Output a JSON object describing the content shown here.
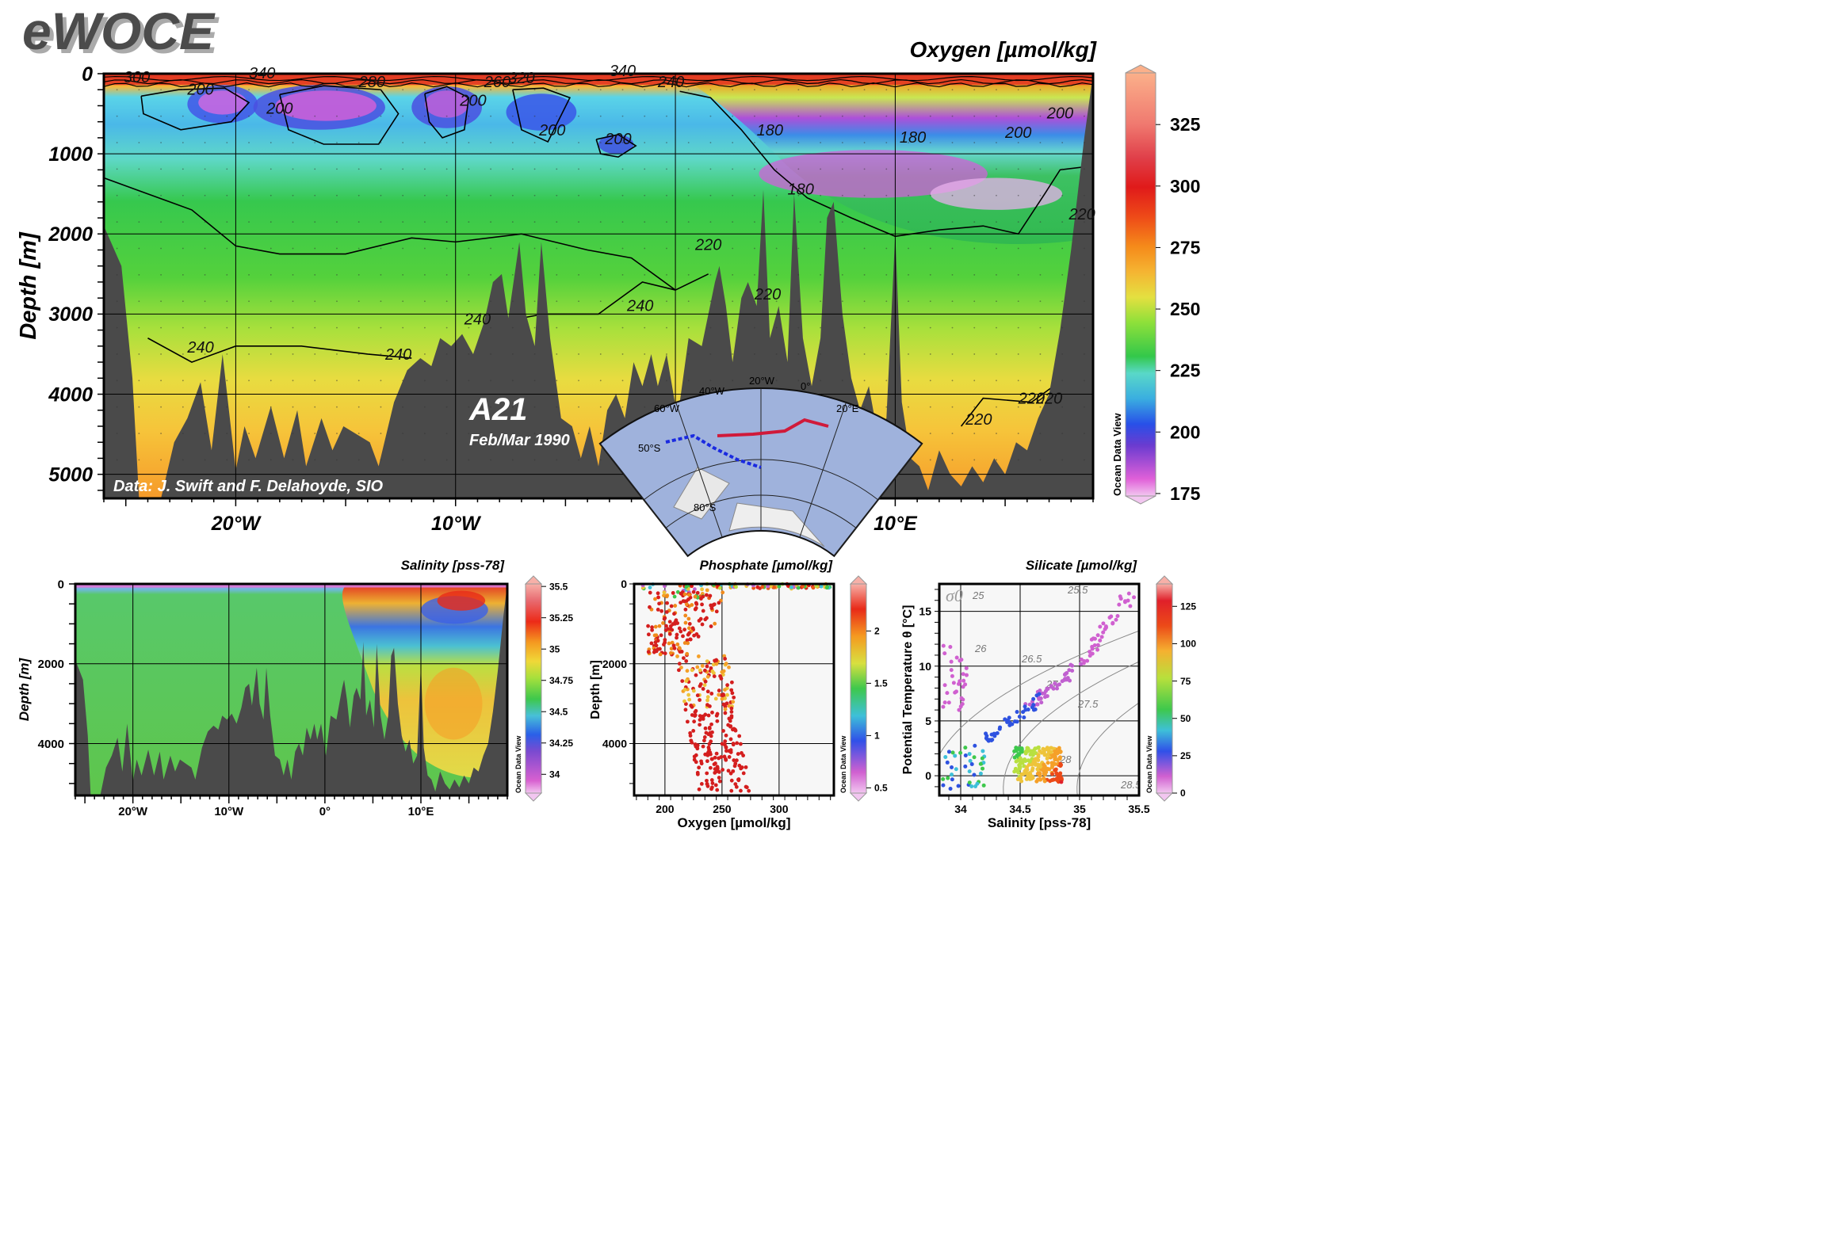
{
  "logo": "eWOCE",
  "chart_data": [
    {
      "type": "heatmap",
      "id": "oxygen-section",
      "title": "Oxygen [µmol/kg]",
      "ylabel": "Depth [m]",
      "xlabel": "",
      "x_ticks": [
        "20°W",
        "10°W",
        "0°",
        "10°E"
      ],
      "x_tick_values": [
        -20,
        -10,
        0,
        10
      ],
      "y_ticks": [
        "0",
        "1000",
        "2000",
        "3000",
        "4000",
        "5000"
      ],
      "y_tick_values": [
        0,
        1000,
        2000,
        3000,
        4000,
        5000
      ],
      "xlim": [
        -26,
        19
      ],
      "ylim": [
        5300,
        0
      ],
      "colorbar_ticks": [
        "175",
        "200",
        "225",
        "250",
        "275",
        "300",
        "325"
      ],
      "colorbar_values": [
        175,
        200,
        225,
        250,
        275,
        300,
        325
      ],
      "colorbar_range": [
        174,
        346
      ],
      "contour_labels": [
        "300",
        "340",
        "280",
        "260",
        "320",
        "340",
        "240",
        "200",
        "200",
        "200",
        "200",
        "200",
        "180",
        "180",
        "180",
        "200",
        "200",
        "220",
        "220",
        "220",
        "240",
        "240",
        "240",
        "240",
        "220",
        "220",
        "220"
      ],
      "contour_values": [
        300,
        340,
        280,
        260,
        320,
        340,
        240,
        200,
        200,
        200,
        200,
        200,
        180,
        180,
        180,
        200,
        200,
        220,
        220,
        220,
        240,
        240,
        240,
        240,
        220,
        220,
        220
      ],
      "contour_label_lon": [
        -24.5,
        -18.8,
        -13.8,
        -8.1,
        -7.0,
        -2.4,
        -0.2,
        -21.6,
        -18.0,
        -9.2,
        -5.6,
        -2.6,
        4.3,
        5.7,
        10.8,
        15.6,
        17.5,
        1.5,
        4.2,
        18.5,
        -21.6,
        -12.6,
        -1.6,
        -9.0,
        16.2,
        13.8,
        17.0
      ],
      "contour_label_depth": [
        110,
        60,
        170,
        170,
        120,
        30,
        170,
        260,
        500,
        400,
        770,
        880,
        770,
        1510,
        860,
        800,
        560,
        2200,
        2820,
        1820,
        3480,
        3570,
        2960,
        3130,
        4120,
        4380,
        4120
      ],
      "annotation_cruise": "A21",
      "annotation_date": "Feb/Mar 1990",
      "source": "Data: J. Swift and F. Delahoyde, SIO",
      "inset_map_labels": [
        "20°W",
        "40°W",
        "60°W",
        "0°",
        "20°E",
        "50°S",
        "80°S"
      ],
      "odv_label": "Ocean Data View"
    },
    {
      "type": "heatmap",
      "id": "salinity-section",
      "title": "Salinity [pss-78]",
      "ylabel": "Depth [m]",
      "xlabel": "",
      "x_ticks": [
        "20°W",
        "10°W",
        "0°",
        "10°E"
      ],
      "x_tick_values": [
        -20,
        -10,
        0,
        10
      ],
      "y_ticks": [
        "0",
        "2000",
        "4000"
      ],
      "y_tick_values": [
        0,
        2000,
        4000
      ],
      "xlim": [
        -26,
        19
      ],
      "ylim": [
        5300,
        0
      ],
      "colorbar_ticks": [
        "34",
        "34.25",
        "34.5",
        "34.75",
        "35",
        "35.25",
        "35.5"
      ],
      "colorbar_values": [
        34,
        34.25,
        34.5,
        34.75,
        35,
        35.25,
        35.5
      ],
      "colorbar_range": [
        33.85,
        35.52
      ],
      "odv_label": "Ocean Data View"
    },
    {
      "type": "scatter",
      "id": "phosphate-profile",
      "title": "Phosphate [µmol/kg]",
      "xlabel": "Oxygen [µmol/kg]",
      "ylabel": "Depth [m]",
      "x_ticks": [
        "200",
        "250",
        "300"
      ],
      "x_tick_values": [
        200,
        250,
        300
      ],
      "y_ticks": [
        "0",
        "2000",
        "4000"
      ],
      "y_tick_values": [
        0,
        2000,
        4000
      ],
      "xlim": [
        173,
        348
      ],
      "ylim": [
        5300,
        0
      ],
      "colorbar_ticks": [
        "0.5",
        "1",
        "1.5",
        "2"
      ],
      "colorbar_values": [
        0.5,
        1,
        1.5,
        2
      ],
      "colorbar_range": [
        0.45,
        2.45
      ],
      "odv_label": "Ocean Data View"
    },
    {
      "type": "scatter",
      "id": "ts-diagram",
      "title": "Silicate [µmol/kg]",
      "xlabel": "Salinity [pss-78]",
      "ylabel": "Potential Temperature θ [°C]",
      "x_ticks": [
        "34",
        "34.5",
        "35",
        "35.5"
      ],
      "x_tick_values": [
        34,
        34.5,
        35,
        35.5
      ],
      "y_ticks": [
        "0",
        "5",
        "10",
        "15"
      ],
      "y_tick_values": [
        0,
        5,
        10,
        15
      ],
      "xlim": [
        33.82,
        35.5
      ],
      "ylim": [
        -1.8,
        17.5
      ],
      "sigma_label": "σ0",
      "isopycnal_labels": [
        "25",
        "25.5",
        "26",
        "26.5",
        "27",
        "27.5",
        "28",
        "28.5"
      ],
      "colorbar_ticks": [
        "0",
        "25",
        "50",
        "75",
        "100",
        "125"
      ],
      "colorbar_values": [
        0,
        25,
        50,
        75,
        100,
        125
      ],
      "colorbar_range": [
        0,
        140
      ],
      "odv_label": "Ocean Data View"
    }
  ]
}
